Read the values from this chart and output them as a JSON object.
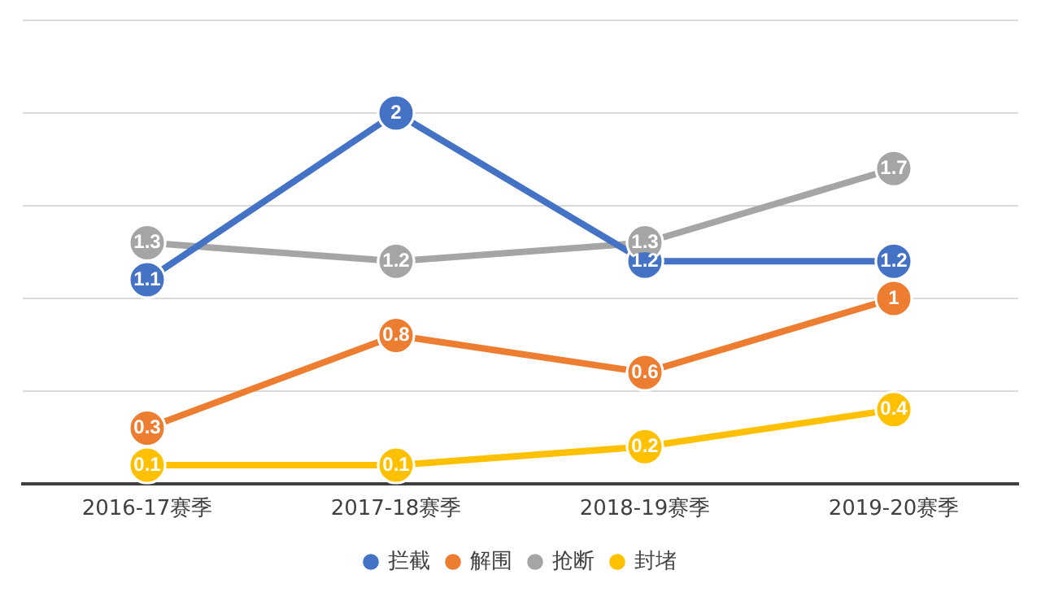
{
  "chart_data": {
    "type": "line",
    "categories": [
      "2016-17赛季",
      "2017-18赛季",
      "2018-19赛季",
      "2019-20赛季"
    ],
    "series": [
      {
        "name": "拦截",
        "color": "#4472c4",
        "values": [
          1.1,
          2,
          1.2,
          1.2
        ]
      },
      {
        "name": "解围",
        "color": "#ed7d31",
        "values": [
          0.3,
          0.8,
          0.6,
          1
        ]
      },
      {
        "name": "抢断",
        "color": "#a5a5a5",
        "values": [
          1.3,
          1.2,
          1.3,
          1.7
        ]
      },
      {
        "name": "封堵",
        "color": "#ffc000",
        "values": [
          0.1,
          0.1,
          0.2,
          0.4
        ]
      }
    ],
    "ylim": [
      0,
      2.5
    ],
    "yticks": [
      {
        "value": 0,
        "label": null
      },
      {
        "value": 0.5,
        "label": null
      },
      {
        "value": 1,
        "label": null
      },
      {
        "value": 1.5,
        "label": null
      },
      {
        "value": 2,
        "label": null
      },
      {
        "value": 2.5,
        "label": null
      }
    ],
    "tick_labels": "x",
    "grid": "y",
    "legend": "bottom",
    "marker": "circle",
    "line_style": "solid",
    "data_labels": true
  }
}
